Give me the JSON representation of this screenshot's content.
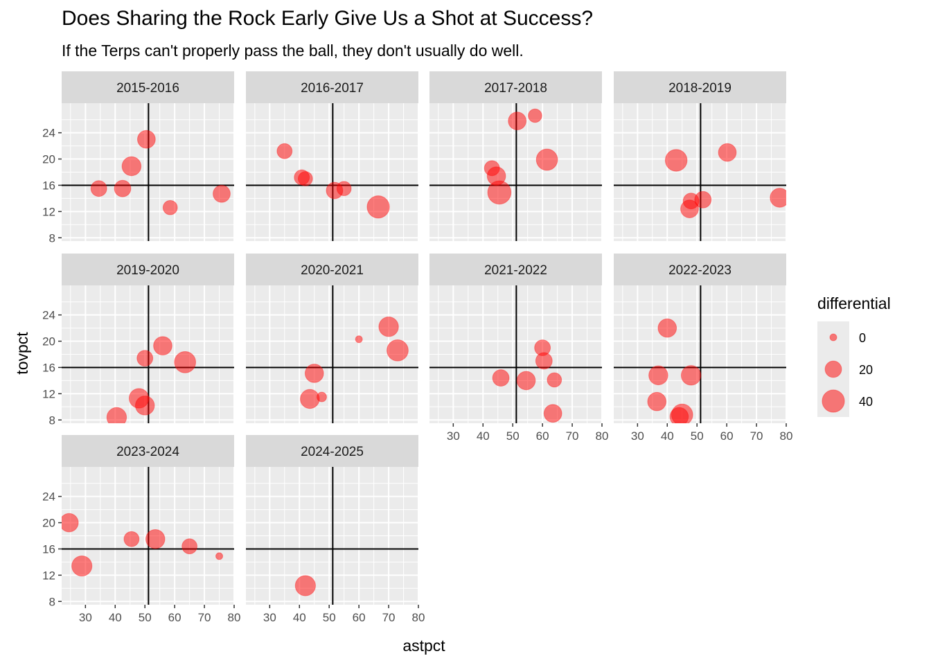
{
  "chart_data": {
    "type": "scatter",
    "title": "Does Sharing the Rock Early Give Us a Shot at Success?",
    "subtitle": "If the Terps can't properly pass the ball, they don't usually do well.",
    "xlabel": "astpct",
    "ylabel": "tovpct",
    "xlim": [
      22,
      80
    ],
    "ylim": [
      7.5,
      28.5
    ],
    "x_ticks": [
      30,
      40,
      50,
      60,
      70,
      80
    ],
    "y_ticks": [
      8,
      12,
      16,
      20,
      24
    ],
    "reference_lines": {
      "vertical_x": 51.2,
      "horizontal_y": 16
    },
    "grid": true,
    "point_color": "#ff0000",
    "point_alpha": 0.5,
    "legend": {
      "title": "differential",
      "placement": "right",
      "size_values": [
        0,
        20,
        40
      ]
    },
    "facets": [
      {
        "label": "2015-2016",
        "points": [
          {
            "x": 50.5,
            "y": 23.0,
            "differential": 24
          },
          {
            "x": 45.5,
            "y": 18.9,
            "differential": 28
          },
          {
            "x": 34.5,
            "y": 15.5,
            "differential": 18
          },
          {
            "x": 42.5,
            "y": 15.5,
            "differential": 20
          },
          {
            "x": 58.5,
            "y": 12.6,
            "differential": 14
          },
          {
            "x": 75.8,
            "y": 14.7,
            "differential": 22
          }
        ]
      },
      {
        "label": "2016-2017",
        "points": [
          {
            "x": 35.0,
            "y": 21.2,
            "differential": 16
          },
          {
            "x": 40.8,
            "y": 17.2,
            "differential": 16
          },
          {
            "x": 42.0,
            "y": 17.0,
            "differential": 14
          },
          {
            "x": 51.8,
            "y": 15.2,
            "differential": 20
          },
          {
            "x": 55.0,
            "y": 15.5,
            "differential": 14
          },
          {
            "x": 66.5,
            "y": 12.7,
            "differential": 40
          }
        ]
      },
      {
        "label": "2017-2018",
        "points": [
          {
            "x": 51.5,
            "y": 25.8,
            "differential": 24
          },
          {
            "x": 57.5,
            "y": 26.6,
            "differential": 12
          },
          {
            "x": 61.5,
            "y": 19.9,
            "differential": 36
          },
          {
            "x": 43.0,
            "y": 18.6,
            "differential": 16
          },
          {
            "x": 44.5,
            "y": 17.4,
            "differential": 26
          },
          {
            "x": 45.5,
            "y": 14.9,
            "differential": 44
          }
        ]
      },
      {
        "label": "2018-2019",
        "points": [
          {
            "x": 43.0,
            "y": 19.8,
            "differential": 38
          },
          {
            "x": 60.2,
            "y": 21.0,
            "differential": 24
          },
          {
            "x": 48.0,
            "y": 13.6,
            "differential": 18
          },
          {
            "x": 47.5,
            "y": 12.4,
            "differential": 24
          },
          {
            "x": 52.0,
            "y": 13.8,
            "differential": 20
          },
          {
            "x": 77.8,
            "y": 14.1,
            "differential": 28
          }
        ]
      },
      {
        "label": "2019-2020",
        "points": [
          {
            "x": 56.0,
            "y": 19.3,
            "differential": 26
          },
          {
            "x": 50.0,
            "y": 17.4,
            "differential": 18
          },
          {
            "x": 63.5,
            "y": 16.8,
            "differential": 36
          },
          {
            "x": 48.0,
            "y": 11.3,
            "differential": 30
          },
          {
            "x": 50.0,
            "y": 10.2,
            "differential": 28
          },
          {
            "x": 40.5,
            "y": 8.4,
            "differential": 30
          }
        ]
      },
      {
        "label": "2020-2021",
        "points": [
          {
            "x": 60.0,
            "y": 20.3,
            "differential": 0
          },
          {
            "x": 70.0,
            "y": 22.2,
            "differential": 30
          },
          {
            "x": 73.0,
            "y": 18.6,
            "differential": 36
          },
          {
            "x": 45.0,
            "y": 15.1,
            "differential": 26
          },
          {
            "x": 43.5,
            "y": 11.2,
            "differential": 28
          },
          {
            "x": 47.5,
            "y": 11.5,
            "differential": 4
          }
        ]
      },
      {
        "label": "2021-2022",
        "points": [
          {
            "x": 60.0,
            "y": 19.0,
            "differential": 18
          },
          {
            "x": 60.5,
            "y": 17.0,
            "differential": 20
          },
          {
            "x": 46.0,
            "y": 14.4,
            "differential": 20
          },
          {
            "x": 54.5,
            "y": 14.0,
            "differential": 26
          },
          {
            "x": 64.0,
            "y": 14.1,
            "differential": 14
          },
          {
            "x": 63.5,
            "y": 9.0,
            "differential": 24
          }
        ]
      },
      {
        "label": "2022-2023",
        "points": [
          {
            "x": 40.0,
            "y": 22.0,
            "differential": 26
          },
          {
            "x": 37.0,
            "y": 14.8,
            "differential": 28
          },
          {
            "x": 48.0,
            "y": 14.8,
            "differential": 30
          },
          {
            "x": 36.5,
            "y": 10.8,
            "differential": 26
          },
          {
            "x": 45.0,
            "y": 8.8,
            "differential": 36
          },
          {
            "x": 44.0,
            "y": 8.5,
            "differential": 26
          }
        ]
      },
      {
        "label": "2023-2024",
        "points": [
          {
            "x": 24.5,
            "y": 20.0,
            "differential": 26
          },
          {
            "x": 28.8,
            "y": 13.4,
            "differential": 32
          },
          {
            "x": 45.5,
            "y": 17.5,
            "differential": 16
          },
          {
            "x": 53.5,
            "y": 17.5,
            "differential": 28
          },
          {
            "x": 65.0,
            "y": 16.4,
            "differential": 16
          },
          {
            "x": 75.0,
            "y": 14.9,
            "differential": 0
          }
        ]
      },
      {
        "label": "2024-2025",
        "points": [
          {
            "x": 42.0,
            "y": 10.4,
            "differential": 32
          }
        ]
      }
    ]
  }
}
